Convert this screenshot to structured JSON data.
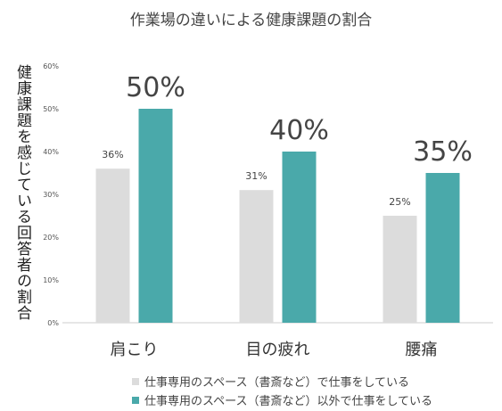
{
  "chart_data": {
    "type": "bar",
    "title": "作業場の違いによる健康課題の割合",
    "ylabel": "健康課題を感じている回答者の割合",
    "categories": [
      "肩こり",
      "目の疲れ",
      "腰痛"
    ],
    "y_ticks": [
      "0%",
      "10%",
      "20%",
      "30%",
      "40%",
      "50%",
      "60%"
    ],
    "ylim": [
      0,
      60
    ],
    "series": [
      {
        "name": "仕事専用のスペース（書斎など）で仕事をしている",
        "values": [
          36,
          31,
          25
        ],
        "labels": [
          "36%",
          "31%",
          "25%"
        ],
        "color": "#dcdcdc"
      },
      {
        "name": "仕事専用のスペース（書斎など）以外で仕事をしている",
        "values": [
          50,
          40,
          35
        ],
        "labels": [
          "50%",
          "40%",
          "35%"
        ],
        "color": "#4aa9aa"
      }
    ],
    "legend": "bottom",
    "grid": false
  }
}
